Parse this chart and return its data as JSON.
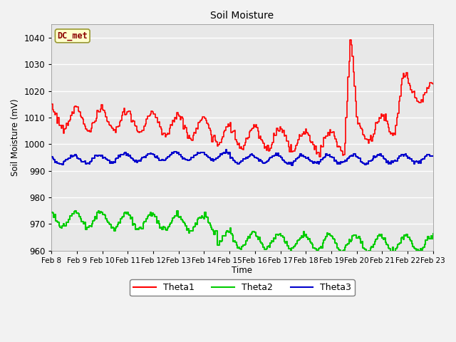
{
  "title": "Soil Moisture",
  "xlabel": "Time",
  "ylabel": "Soil Moisture (mV)",
  "ylim": [
    960,
    1045
  ],
  "yticks": [
    960,
    970,
    980,
    990,
    1000,
    1010,
    1020,
    1030,
    1040
  ],
  "annotation": "DC_met",
  "fig_bg": "#f2f2f2",
  "plot_bg": "#e8e8e8",
  "theta1_color": "#ff0000",
  "theta2_color": "#00cc00",
  "theta3_color": "#0000cc",
  "legend_labels": [
    "Theta1",
    "Theta2",
    "Theta3"
  ],
  "x_start": 8.0,
  "x_end": 23.0,
  "xtick_positions": [
    8,
    9,
    10,
    11,
    12,
    13,
    14,
    15,
    16,
    17,
    18,
    19,
    20,
    21,
    22,
    23
  ],
  "xtick_labels": [
    "Feb 8",
    "Feb 9",
    "Feb 10",
    "Feb 11",
    "Feb 12",
    "Feb 13",
    "Feb 14",
    "Feb 15",
    "Feb 16",
    "Feb 17",
    "Feb 18",
    "Feb 19",
    "Feb 20",
    "Feb 21",
    "Feb 22",
    "Feb 23"
  ]
}
